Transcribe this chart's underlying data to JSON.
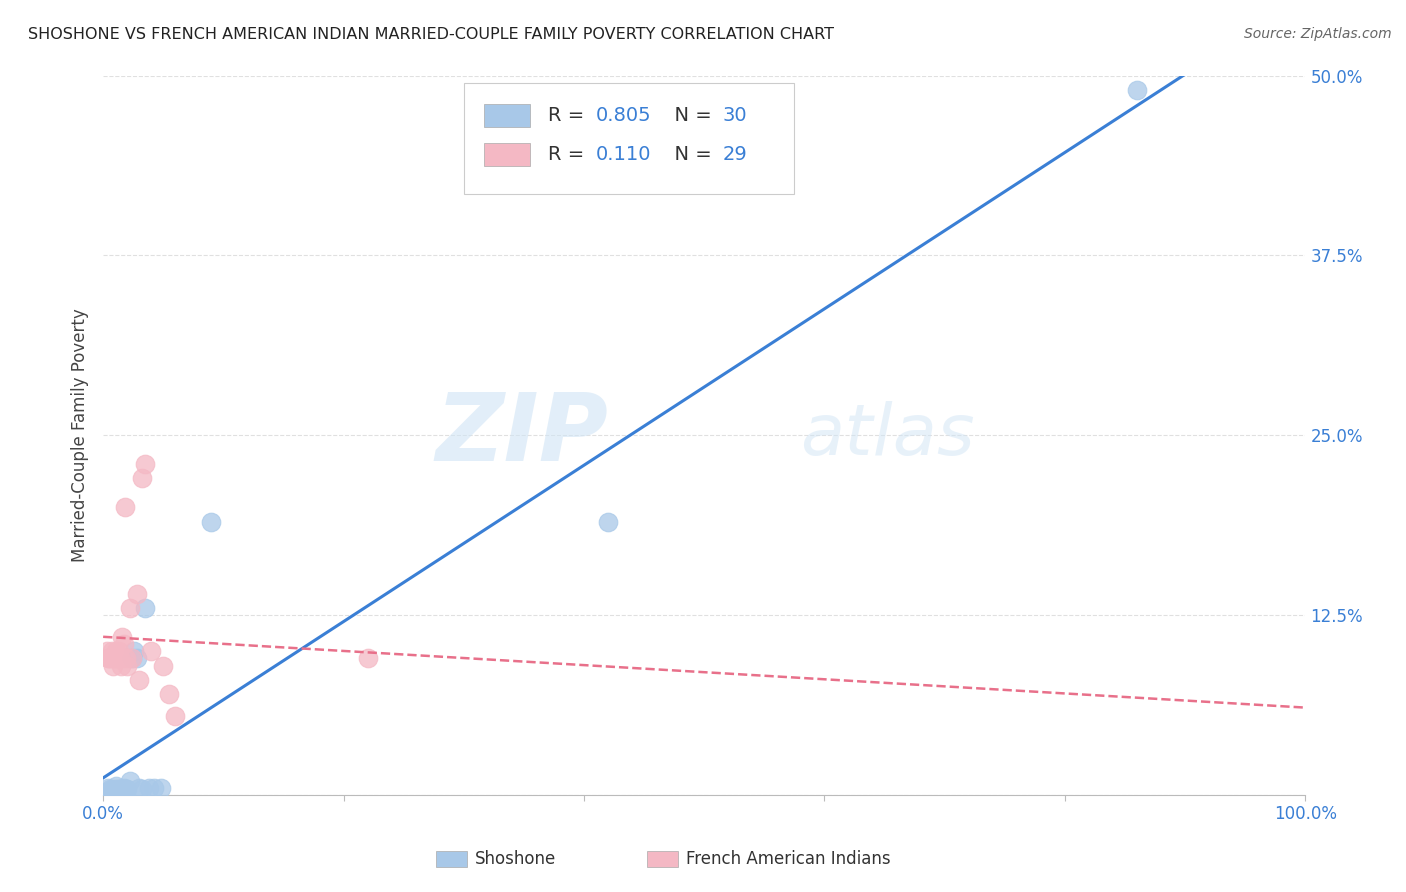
{
  "title": "SHOSHONE VS FRENCH AMERICAN INDIAN MARRIED-COUPLE FAMILY POVERTY CORRELATION CHART",
  "source": "Source: ZipAtlas.com",
  "ylabel": "Married-Couple Family Poverty",
  "xlim": [
    0,
    1.0
  ],
  "ylim": [
    0,
    0.5
  ],
  "yticks": [
    0.0,
    0.125,
    0.25,
    0.375,
    0.5
  ],
  "ytick_labels": [
    "",
    "12.5%",
    "25.0%",
    "37.5%",
    "50.0%"
  ],
  "xticks": [
    0.0,
    0.2,
    0.4,
    0.6,
    0.8,
    1.0
  ],
  "xtick_labels": [
    "0.0%",
    "",
    "",
    "",
    "",
    "100.0%"
  ],
  "legend_label1": "Shoshone",
  "legend_label2": "French American Indians",
  "R1": 0.805,
  "N1": 30,
  "R2": 0.11,
  "N2": 29,
  "color_blue": "#a8c8e8",
  "color_pink": "#f4b8c4",
  "line_blue": "#3a7fd5",
  "line_pink": "#e8708a",
  "shoshone_x": [
    0.004,
    0.005,
    0.006,
    0.007,
    0.008,
    0.009,
    0.01,
    0.011,
    0.012,
    0.013,
    0.014,
    0.015,
    0.016,
    0.017,
    0.018,
    0.019,
    0.02,
    0.022,
    0.024,
    0.026,
    0.028,
    0.03,
    0.032,
    0.035,
    0.038,
    0.042,
    0.048,
    0.09,
    0.42,
    0.86
  ],
  "shoshone_y": [
    0.005,
    0.003,
    0.004,
    0.002,
    0.003,
    0.003,
    0.004,
    0.006,
    0.003,
    0.004,
    0.004,
    0.004,
    0.004,
    0.005,
    0.003,
    0.004,
    0.004,
    0.01,
    0.095,
    0.1,
    0.095,
    0.005,
    0.004,
    0.13,
    0.005,
    0.005,
    0.005,
    0.19,
    0.19,
    0.49
  ],
  "french_x": [
    0.003,
    0.004,
    0.005,
    0.006,
    0.007,
    0.008,
    0.009,
    0.01,
    0.011,
    0.012,
    0.013,
    0.014,
    0.015,
    0.016,
    0.017,
    0.018,
    0.019,
    0.02,
    0.022,
    0.024,
    0.028,
    0.03,
    0.032,
    0.035,
    0.04,
    0.05,
    0.055,
    0.22,
    0.06
  ],
  "french_y": [
    0.1,
    0.095,
    0.095,
    0.095,
    0.1,
    0.09,
    0.095,
    0.095,
    0.1,
    0.095,
    0.1,
    0.095,
    0.09,
    0.11,
    0.105,
    0.2,
    0.095,
    0.09,
    0.13,
    0.095,
    0.14,
    0.08,
    0.22,
    0.23,
    0.1,
    0.09,
    0.07,
    0.095,
    0.055
  ],
  "watermark_zip": "ZIP",
  "watermark_atlas": "atlas",
  "background_color": "#ffffff",
  "grid_color": "#e0e0e0"
}
